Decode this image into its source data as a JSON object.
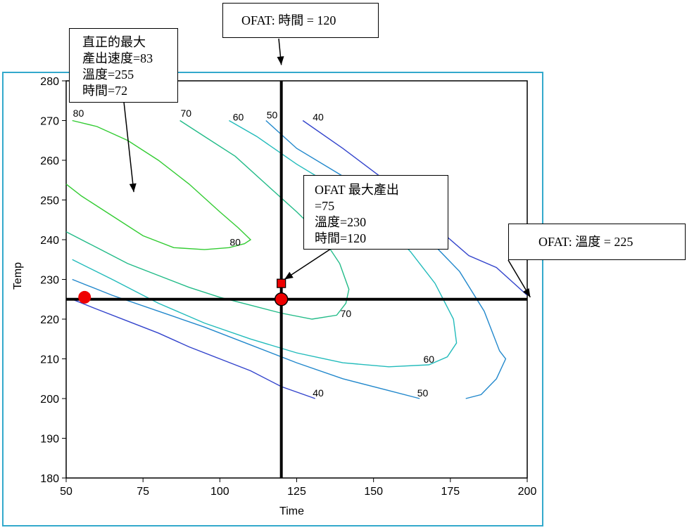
{
  "chart_data": {
    "type": "contour",
    "xlabel": "Time",
    "ylabel": "Temp",
    "xlim": [
      50,
      200
    ],
    "ylim": [
      180,
      280
    ],
    "xticks": [
      50,
      75,
      100,
      125,
      150,
      175,
      200
    ],
    "yticks": [
      180,
      190,
      200,
      210,
      220,
      230,
      240,
      250,
      260,
      270,
      280
    ],
    "contours": [
      {
        "level": 80,
        "color": "#33cc33",
        "label_text": "80",
        "segments": [
          [
            [
              52,
              270
            ],
            [
              60,
              268.5
            ],
            [
              70,
              265
            ],
            [
              80,
              260
            ],
            [
              90,
              254
            ],
            [
              100,
              247
            ],
            [
              106,
              243
            ],
            [
              110,
              240
            ],
            [
              108,
              239
            ],
            [
              103,
              238
            ],
            [
              95,
              237.5
            ],
            [
              85,
              238
            ],
            [
              75,
              241
            ],
            [
              65,
              246
            ],
            [
              55,
              251
            ],
            [
              50,
              254
            ]
          ]
        ]
      },
      {
        "level": 70,
        "color": "#22bb88",
        "label_text": "70",
        "segments": [
          [
            [
              87,
              270
            ],
            [
              95,
              266
            ],
            [
              105,
              261
            ],
            [
              115,
              254
            ],
            [
              125,
              247
            ],
            [
              133,
              241
            ],
            [
              139,
              234
            ],
            [
              142,
              227.5
            ],
            [
              141,
              224
            ],
            [
              138,
              221
            ],
            [
              130,
              220
            ],
            [
              120,
              221.5
            ],
            [
              110,
              223.5
            ],
            [
              100,
              225.5
            ],
            [
              90,
              228
            ],
            [
              80,
              231
            ],
            [
              70,
              234
            ],
            [
              60,
              238
            ],
            [
              50,
              242
            ]
          ]
        ]
      },
      {
        "level": 60,
        "color": "#22bbbb",
        "label_text": "60",
        "segments": [
          [
            [
              103,
              270
            ],
            [
              112,
              266
            ],
            [
              125,
              259
            ],
            [
              140,
              252
            ],
            [
              152,
              245
            ],
            [
              162,
              237
            ],
            [
              170,
              229
            ],
            [
              176,
              220
            ],
            [
              177,
              214
            ],
            [
              174,
              210.5
            ],
            [
              168,
              208.5
            ],
            [
              155,
              208
            ],
            [
              140,
              209
            ],
            [
              125,
              211.5
            ],
            [
              110,
              215
            ],
            [
              95,
              219
            ],
            [
              80,
              224
            ],
            [
              65,
              230
            ],
            [
              52,
              235
            ]
          ]
        ]
      },
      {
        "level": 50,
        "color": "#2288cc",
        "label_text": "50",
        "segments": [
          [
            [
              115,
              270
            ],
            [
              125,
              263
            ],
            [
              140,
              256
            ],
            [
              155,
              248
            ],
            [
              168,
              240
            ],
            [
              178,
              232
            ],
            [
              186,
              222
            ],
            [
              191,
              212
            ],
            [
              193,
              210
            ],
            [
              190,
              205
            ],
            [
              185,
              201
            ],
            [
              180,
              200
            ]
          ],
          [
            [
              165,
              200
            ],
            [
              155,
              202
            ],
            [
              140,
              205
            ],
            [
              125,
              209
            ],
            [
              110,
              213.5
            ],
            [
              95,
              218
            ],
            [
              80,
              222
            ],
            [
              65,
              226
            ],
            [
              52,
              230
            ]
          ]
        ]
      },
      {
        "level": 40,
        "color": "#3344cc",
        "label_text": "40",
        "segments": [
          [
            [
              127,
              270
            ],
            [
              140,
              263
            ],
            [
              152,
              256
            ],
            [
              162,
              249
            ],
            [
              172,
              242
            ],
            [
              181,
              236
            ],
            [
              190,
              233
            ],
            [
              200,
              226
            ]
          ],
          [
            [
              131,
              200
            ],
            [
              120,
              203
            ],
            [
              110,
              207
            ],
            [
              100,
              210
            ],
            [
              90,
              213
            ],
            [
              80,
              216.5
            ],
            [
              70,
              219.5
            ],
            [
              60,
              222.5
            ],
            [
              52,
              225
            ]
          ]
        ]
      }
    ],
    "contour_labels": [
      {
        "text": "80",
        "x": 54,
        "y": 271
      },
      {
        "text": "80",
        "x": 105,
        "y": 238.5
      },
      {
        "text": "70",
        "x": 89,
        "y": 271
      },
      {
        "text": "70",
        "x": 141,
        "y": 220.5
      },
      {
        "text": "60",
        "x": 106,
        "y": 270
      },
      {
        "text": "60",
        "x": 168,
        "y": 209
      },
      {
        "text": "50",
        "x": 117,
        "y": 270.5
      },
      {
        "text": "50",
        "x": 166,
        "y": 200.5
      },
      {
        "text": "40",
        "x": 132,
        "y": 270
      },
      {
        "text": "40",
        "x": 132,
        "y": 200.5
      }
    ],
    "crosshair": {
      "x": 120,
      "y": 225
    },
    "markers": [
      {
        "name": "ofat-max-square",
        "shape": "square",
        "x": 120,
        "y": 229,
        "color": "#ee0000"
      },
      {
        "name": "crosshair-circle",
        "shape": "circle",
        "x": 120,
        "y": 225,
        "color": "#ee0000"
      },
      {
        "name": "interior-circle",
        "shape": "circle",
        "x": 56,
        "y": 225.5,
        "color": "#ee0000"
      }
    ],
    "annotations": [
      {
        "name": "true-max-callout",
        "lines": [
          "直正的最大",
          "產出速度=83",
          "溫度=255",
          "時間=72"
        ],
        "arrow_to": {
          "x": 72,
          "y": 252
        }
      },
      {
        "name": "time-callout",
        "lines": [
          "OFAT:  時間 = 120"
        ],
        "arrow_to": {
          "x": 120,
          "y": 284
        }
      },
      {
        "name": "ofat-max-callout",
        "lines": [
          "OFAT  最大產出",
          "=75",
          "溫度=230",
          "時間=120"
        ],
        "arrow_to": {
          "x": 121,
          "y": 230
        }
      },
      {
        "name": "temp-callout",
        "lines": [
          "OFAT:  溫度 = 225"
        ],
        "arrow_to": {
          "x": 201,
          "y": 225.5
        }
      }
    ]
  }
}
